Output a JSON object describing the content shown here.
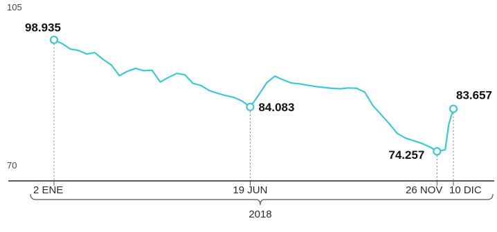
{
  "chart_data": {
    "type": "line",
    "title": "",
    "xlabel": "",
    "ylabel": "",
    "x_group_label": "2018",
    "ylim": [
      70,
      105
    ],
    "y_ticks": [
      "105",
      "70"
    ],
    "x_tick_labels": [
      "2 ENE",
      "19 JUN",
      "26 NOV",
      "10 DIC"
    ],
    "line_color": "#3cc8d8",
    "callouts": [
      {
        "label": "98.935",
        "x": "2018-01-02",
        "y": 98.935
      },
      {
        "label": "84.083",
        "x": "2018-06-19",
        "y": 84.083
      },
      {
        "label": "74.257",
        "x": "2018-11-26",
        "y": 74.257
      },
      {
        "label": "83.657",
        "x": "2018-12-10",
        "y": 83.657
      }
    ],
    "series": [
      {
        "x": [
          "2018-01-02",
          "2018-01-09",
          "2018-01-16",
          "2018-01-23",
          "2018-01-30",
          "2018-02-06",
          "2018-02-13",
          "2018-02-20",
          "2018-02-27",
          "2018-03-06",
          "2018-03-13",
          "2018-03-20",
          "2018-03-27",
          "2018-04-03",
          "2018-04-10",
          "2018-04-17",
          "2018-04-24",
          "2018-05-01",
          "2018-05-08",
          "2018-05-15",
          "2018-05-22",
          "2018-05-29",
          "2018-06-05",
          "2018-06-12",
          "2018-06-19",
          "2018-06-26",
          "2018-07-03",
          "2018-07-10",
          "2018-07-17",
          "2018-07-24",
          "2018-07-31",
          "2018-08-07",
          "2018-08-14",
          "2018-08-21",
          "2018-08-28",
          "2018-09-04",
          "2018-09-11",
          "2018-09-18",
          "2018-09-25",
          "2018-10-02",
          "2018-10-09",
          "2018-10-16",
          "2018-10-23",
          "2018-10-30",
          "2018-11-06",
          "2018-11-13",
          "2018-11-20",
          "2018-11-26",
          "2018-12-03",
          "2018-12-06",
          "2018-12-10"
        ],
        "values": [
          98.935,
          98.1,
          96.9,
          96.6,
          95.8,
          96.1,
          94.6,
          93.4,
          91.0,
          92.0,
          92.6,
          92.1,
          92.2,
          89.6,
          90.6,
          91.5,
          91.2,
          89.3,
          88.8,
          87.7,
          87.1,
          86.6,
          86.2,
          85.4,
          84.083,
          86.6,
          89.4,
          90.9,
          90.1,
          89.4,
          89.2,
          88.9,
          88.6,
          88.4,
          88.2,
          88.1,
          88.3,
          88.2,
          87.4,
          84.4,
          82.4,
          80.4,
          78.2,
          77.2,
          76.6,
          76.0,
          75.2,
          74.257,
          74.6,
          80.2,
          83.657
        ]
      }
    ]
  }
}
